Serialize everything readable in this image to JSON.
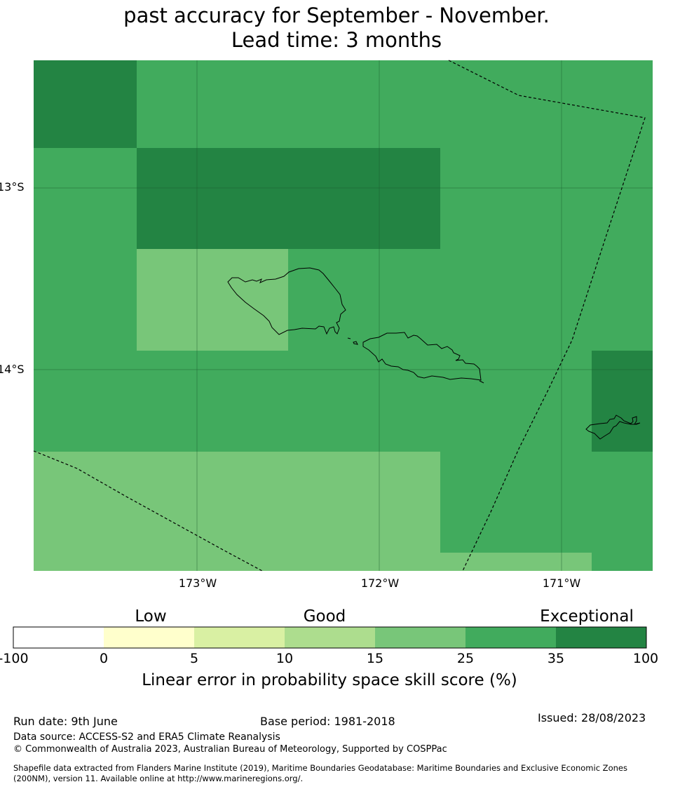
{
  "title": {
    "line1": "past accuracy for September - November.",
    "line2": "Lead time: 3 months"
  },
  "map": {
    "lon_labels": [
      "173°W",
      "172°W",
      "171°W"
    ],
    "lat_labels": [
      "13°S",
      "14°S"
    ],
    "lon_range": [
      -173.9,
      -170.5
    ],
    "lat_range": [
      -15.1,
      -12.3
    ],
    "colors": {
      "band_15_25": "#78c679",
      "band_25_35": "#41ab5d",
      "band_35_100": "#238443"
    }
  },
  "legend": {
    "categories": [
      "Low",
      "Good",
      "Exceptional"
    ],
    "ticks": [
      "-100",
      "0",
      "5",
      "10",
      "15",
      "25",
      "35",
      "100"
    ],
    "colors": [
      "#ffffff",
      "#ffffcc",
      "#d9f0a3",
      "#addd8e",
      "#78c679",
      "#41ab5d",
      "#238443"
    ],
    "title": "Linear error in probability space skill score (%)"
  },
  "footer": {
    "run_date": "Run date: 9th June",
    "base_period": "Base period: 1981-2018",
    "issued": "Issued: 28/08/2023",
    "data_source": "Data source: ACCESS-S2 and ERA5 Climate Reanalysis",
    "copyright": "© Commonwealth of Australia 2023, Australian Bureau of Meteorology, Supported by COSPPac",
    "shapefile_line1": "Shapefile data extracted from Flanders Marine Institute (2019), Maritime Boundaries Geodatabase: Maritime Boundaries and Exclusive Economic Zones",
    "shapefile_line2": "(200NM), version 11. Available online at http://www.marineregions.org/."
  }
}
